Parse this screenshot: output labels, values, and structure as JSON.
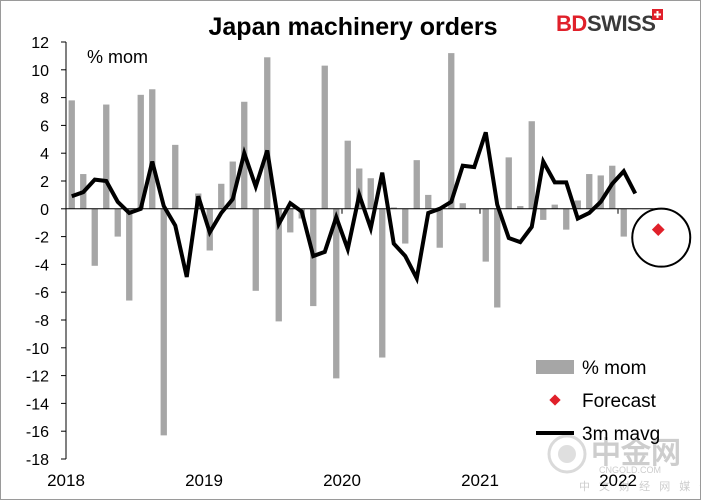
{
  "title": "Japan machinery orders",
  "logo": {
    "part1": "BD",
    "part2": "SWISS",
    "accent": "#e0202a"
  },
  "watermark": {
    "name": "中金网",
    "domain": "CNGOLD.COM",
    "tagline": "中 文 财 经 网 媒 体"
  },
  "chart_data": {
    "type": "bar",
    "unit_label": "% mom",
    "ylim": [
      -18,
      12
    ],
    "yticks": [
      12,
      10,
      8,
      6,
      4,
      2,
      0,
      -2,
      -4,
      -6,
      -8,
      -10,
      -12,
      -14,
      -16,
      -18
    ],
    "x_tick_labels": [
      "2018",
      "2019",
      "2020",
      "2021",
      "2022"
    ],
    "grid": false,
    "legend_position": "bottom-right",
    "period": {
      "first": "2018-01",
      "last": "2022-04"
    },
    "series": [
      {
        "name": "% mom",
        "kind": "bar",
        "color": "#a6a6a6",
        "values": [
          7.8,
          2.5,
          -4.1,
          7.5,
          -2.0,
          -6.6,
          8.2,
          8.6,
          -16.3,
          4.6,
          0.0,
          1.1,
          -3.0,
          1.8,
          3.4,
          7.7,
          -5.9,
          10.9,
          -8.1,
          -1.7,
          -0.7,
          -7.0,
          10.3,
          -12.2,
          4.9,
          2.9,
          2.2,
          -10.7,
          0.1,
          -2.5,
          3.5,
          1.0,
          -2.8,
          11.2,
          0.4,
          0.0,
          -3.8,
          -7.1,
          3.7,
          0.2,
          6.3,
          -0.8,
          0.3,
          -1.5,
          0.6,
          2.5,
          2.4,
          3.1,
          -2.0,
          0.0
        ]
      },
      {
        "name": "Forecast",
        "kind": "point",
        "color": "#e0202a",
        "points": [
          {
            "x": "2022-04",
            "y": -1.5
          }
        ]
      },
      {
        "name": "3m mavg",
        "kind": "line",
        "color": "#000000",
        "values": [
          0.9,
          1.2,
          2.1,
          2.0,
          0.5,
          -0.3,
          0.0,
          3.4,
          0.2,
          -1.2,
          -4.9,
          0.9,
          -1.7,
          -0.3,
          0.7,
          4.0,
          1.6,
          4.2,
          -1.1,
          0.4,
          -0.2,
          -3.4,
          -3.1,
          -0.6,
          -2.9,
          1.0,
          -1.4,
          2.6,
          -2.5,
          -3.4,
          -5.0,
          -0.3,
          0.0,
          0.5,
          3.1,
          3.0,
          5.5,
          0.3,
          -2.1,
          -2.4,
          -1.3,
          3.4,
          1.9,
          1.9,
          -0.7,
          -0.3,
          0.5,
          1.8,
          2.7,
          1.1
        ]
      }
    ]
  }
}
